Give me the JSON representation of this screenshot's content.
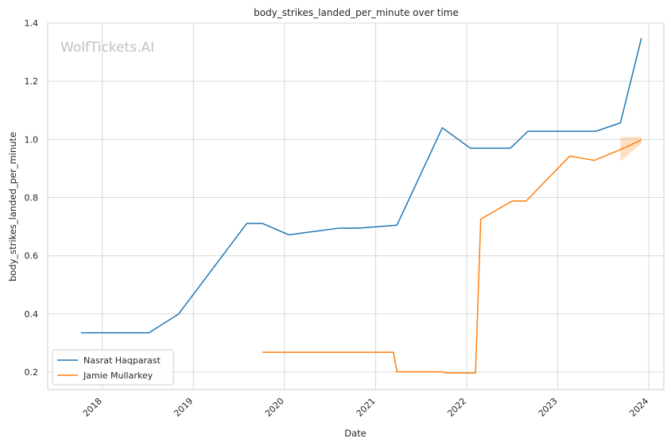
{
  "chart_data": {
    "type": "line",
    "title": "body_strikes_landed_per_minute over time",
    "xlabel": "Date",
    "ylabel": "body_strikes_landed_per_minute",
    "watermark": "WolfTickets.AI",
    "x_ticks": [
      "2018",
      "2019",
      "2020",
      "2021",
      "2022",
      "2023",
      "2024"
    ],
    "y_ticks": [
      "0.2",
      "0.4",
      "0.6",
      "0.8",
      "1.0",
      "1.2",
      "1.4"
    ],
    "xlim": [
      "2017-05-27",
      "2024-03-01"
    ],
    "ylim": [
      0.14,
      1.4
    ],
    "grid": true,
    "legend_position": "lower-left",
    "series": [
      {
        "name": "Nasrat Haqparast",
        "color": "#1f77b4",
        "points": [
          [
            "2017-10-07",
            0.335
          ],
          [
            "2018-07-07",
            0.335
          ],
          [
            "2018-11-03",
            0.4
          ],
          [
            "2019-08-03",
            0.711
          ],
          [
            "2019-10-05",
            0.711
          ],
          [
            "2020-01-18",
            0.672
          ],
          [
            "2020-08-08",
            0.695
          ],
          [
            "2020-10-24",
            0.695
          ],
          [
            "2021-03-27",
            0.705
          ],
          [
            "2021-09-25",
            1.04
          ],
          [
            "2022-01-15",
            0.97
          ],
          [
            "2022-06-25",
            0.97
          ],
          [
            "2022-09-03",
            1.028
          ],
          [
            "2023-06-03",
            1.028
          ],
          [
            "2023-09-09",
            1.057
          ],
          [
            "2023-12-02",
            1.348
          ]
        ]
      },
      {
        "name": "Jamie Mullarkey",
        "color": "#ff7f0e",
        "points": [
          [
            "2019-10-05",
            0.268
          ],
          [
            "2021-03-13",
            0.268
          ],
          [
            "2021-03-27",
            0.201
          ],
          [
            "2021-09-25",
            0.201
          ],
          [
            "2021-10-09",
            0.197
          ],
          [
            "2022-02-05",
            0.197
          ],
          [
            "2022-02-26",
            0.726
          ],
          [
            "2022-07-02",
            0.788
          ],
          [
            "2022-08-27",
            0.788
          ],
          [
            "2023-02-18",
            0.943
          ],
          [
            "2023-05-27",
            0.928
          ],
          [
            "2023-09-09",
            0.965
          ],
          [
            "2023-12-02",
            0.998
          ]
        ],
        "band": {
          "x": [
            "2023-09-09",
            "2023-12-02"
          ],
          "lower": [
            0.925,
            0.985
          ],
          "upper": [
            1.008,
            1.008
          ]
        }
      }
    ]
  }
}
